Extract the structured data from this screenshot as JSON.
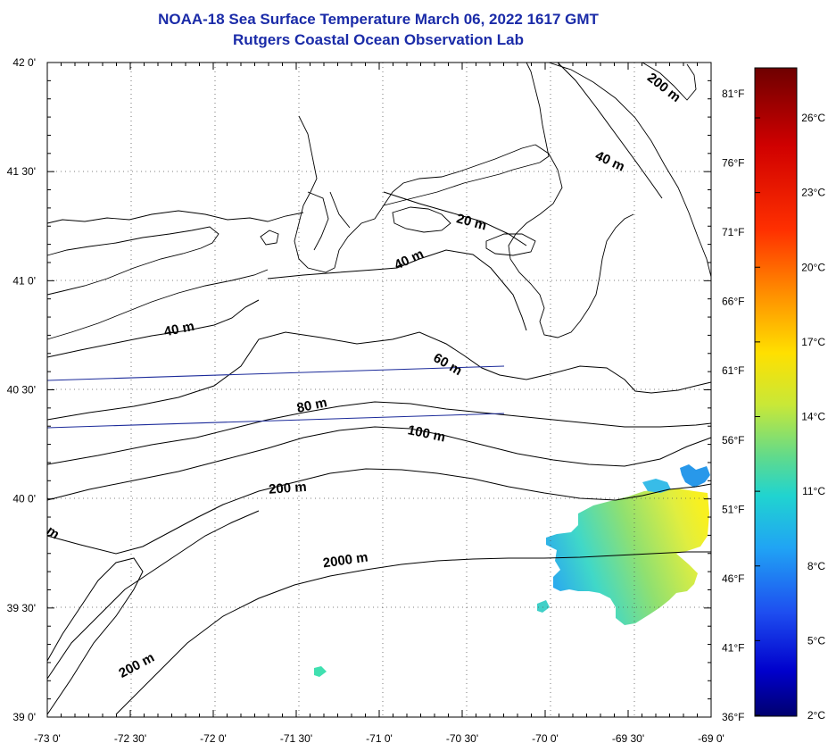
{
  "title": {
    "line1": "NOAA-18 Sea Surface Temperature March 06, 2022 1617 GMT",
    "line2": "Rutgers Coastal Ocean Observation Lab"
  },
  "map": {
    "lon_range": [
      -73.0,
      -69.0
    ],
    "lat_range": [
      39.0,
      42.0
    ],
    "grid": true,
    "lon_ticks": [
      {
        "value": -73.0,
        "label": "-73 0'"
      },
      {
        "value": -72.5,
        "label": "-72 30'"
      },
      {
        "value": -72.0,
        "label": "-72 0'"
      },
      {
        "value": -71.5,
        "label": "-71 30'"
      },
      {
        "value": -71.0,
        "label": "-71 0'"
      },
      {
        "value": -70.5,
        "label": "-70 30'"
      },
      {
        "value": -70.0,
        "label": "-70 0'"
      },
      {
        "value": -69.5,
        "label": "-69 30'"
      },
      {
        "value": -69.0,
        "label": "-69 0'"
      }
    ],
    "lat_ticks": [
      {
        "value": 42.0,
        "label": "42 0'"
      },
      {
        "value": 41.5,
        "label": "41 30'"
      },
      {
        "value": 41.0,
        "label": "41 0'"
      },
      {
        "value": 40.5,
        "label": "40 30'"
      },
      {
        "value": 40.0,
        "label": "40 0'"
      },
      {
        "value": 39.5,
        "label": "39 30'"
      },
      {
        "value": 39.0,
        "label": "39 0'"
      }
    ],
    "right_f_labels": [
      {
        "value": 81,
        "label": "81°F"
      },
      {
        "value": 76,
        "label": "76°F"
      },
      {
        "value": 71,
        "label": "71°F"
      },
      {
        "value": 66,
        "label": "66°F"
      },
      {
        "value": 61,
        "label": "61°F"
      },
      {
        "value": 56,
        "label": "56°F"
      },
      {
        "value": 51,
        "label": "51°F"
      },
      {
        "value": 46,
        "label": "46°F"
      },
      {
        "value": 41,
        "label": "41°F"
      },
      {
        "value": 36,
        "label": "36°F"
      }
    ],
    "contour_labels": [
      {
        "text": "200 m",
        "lon": -69.3,
        "lat": 41.87,
        "rotate": 38
      },
      {
        "text": "40 m",
        "lon": -69.62,
        "lat": 41.53,
        "rotate": 25
      },
      {
        "text": "20 m",
        "lon": -70.45,
        "lat": 41.25,
        "rotate": 15
      },
      {
        "text": "40 m",
        "lon": -70.81,
        "lat": 41.08,
        "rotate": -25
      },
      {
        "text": "40 m",
        "lon": -72.2,
        "lat": 40.76,
        "rotate": -12
      },
      {
        "text": "60 m",
        "lon": -70.6,
        "lat": 40.6,
        "rotate": 30
      },
      {
        "text": "80 m",
        "lon": -71.4,
        "lat": 40.41,
        "rotate": -12
      },
      {
        "text": "100 m",
        "lon": -70.72,
        "lat": 40.28,
        "rotate": 12
      },
      {
        "text": "200 m",
        "lon": -71.55,
        "lat": 40.03,
        "rotate": -4
      },
      {
        "text": "2000 m",
        "lon": -71.2,
        "lat": 39.7,
        "rotate": -8
      },
      {
        "text": "200 m",
        "lon": -72.45,
        "lat": 39.22,
        "rotate": -28
      },
      {
        "text": "m",
        "lon": -72.98,
        "lat": 39.83,
        "rotate": 35
      }
    ]
  },
  "colorbar": {
    "celsius_labels": [
      {
        "value": 26,
        "label": "26°C"
      },
      {
        "value": 23,
        "label": "23°C"
      },
      {
        "value": 20,
        "label": "20°C"
      },
      {
        "value": 17,
        "label": "17°C"
      },
      {
        "value": 14,
        "label": "14°C"
      },
      {
        "value": 11,
        "label": "11°C"
      },
      {
        "value": 8,
        "label": "8°C"
      },
      {
        "value": 5,
        "label": "5°C"
      },
      {
        "value": 2,
        "label": "2°C"
      }
    ],
    "colors": [
      "#7a0000",
      "#c80000",
      "#ff2a00",
      "#ff8000",
      "#ffd000",
      "#f5f520",
      "#b0e040",
      "#5cd890",
      "#20d0d0",
      "#20a0f0",
      "#2050f0",
      "#0000d0",
      "#000080"
    ]
  }
}
